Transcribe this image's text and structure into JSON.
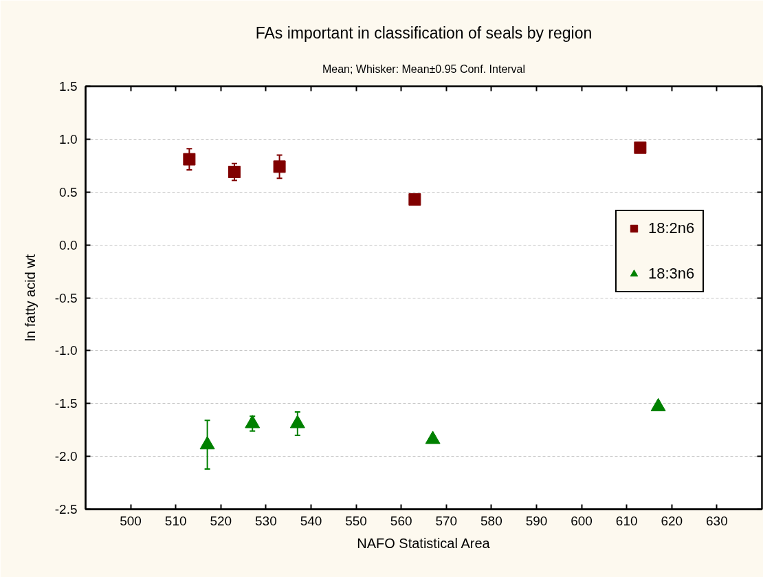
{
  "chart_data": {
    "type": "scatter",
    "title": "FAs important in classification of seals by region",
    "subtitle": "Mean; Whisker: Mean±0.95 Conf. Interval",
    "xlabel": "NAFO Statistical Area",
    "ylabel": "ln fatty acid wt",
    "xlim": [
      490,
      640
    ],
    "xticks": [
      500,
      510,
      520,
      530,
      540,
      550,
      560,
      570,
      580,
      590,
      600,
      610,
      620,
      630
    ],
    "ylim": [
      -2.5,
      1.5
    ],
    "yticks": [
      1.5,
      {
        "value": 1,
        "label": "1.0"
      },
      0.5,
      {
        "value": 0,
        "label": "0.0"
      },
      -0.5,
      {
        "value": -1,
        "label": "-1.0"
      },
      -1.5,
      {
        "value": -2,
        "label": "-2.0"
      },
      -2.5
    ],
    "grid": "y",
    "legend": "right",
    "series": [
      {
        "name": "18:2n6",
        "color": "#800000",
        "marker": "square",
        "x": [
          513,
          523,
          533,
          563,
          613
        ],
        "values": [
          0.81,
          0.69,
          0.74,
          0.43,
          0.92
        ],
        "errors": [
          0.1,
          0.08,
          0.11,
          null,
          null
        ]
      },
      {
        "name": "18:3n6",
        "color": "#008000",
        "marker": "triangle",
        "x": [
          517,
          527,
          537,
          567,
          617
        ],
        "values": [
          -1.89,
          -1.69,
          -1.69,
          -1.84,
          -1.53
        ],
        "errors": [
          0.23,
          0.07,
          0.11,
          null,
          null
        ]
      }
    ]
  }
}
